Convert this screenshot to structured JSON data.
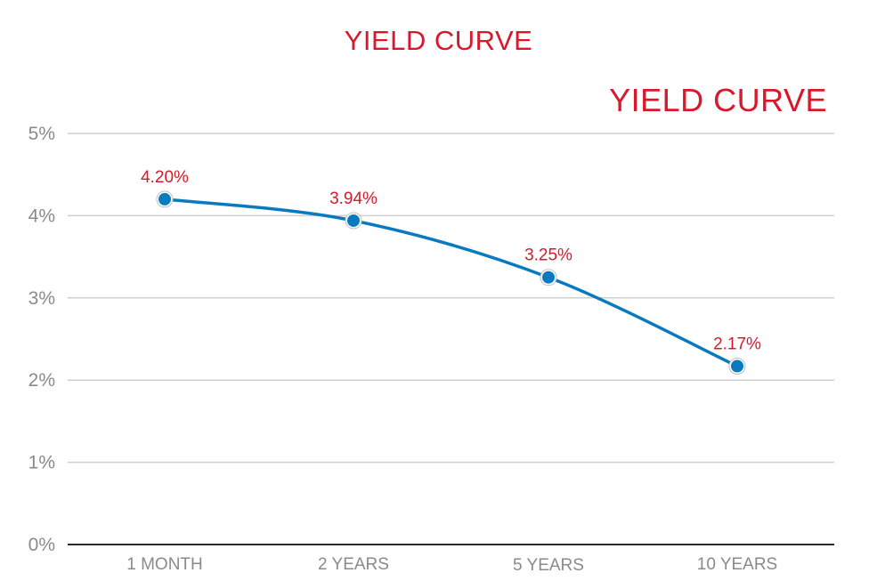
{
  "chart_data": {
    "type": "line",
    "title": "YIELD CURVE",
    "title_secondary": "YIELD CURVE",
    "categories": [
      "1 MONTH",
      "2 YEARS",
      "5 YEARS",
      "10 YEARS"
    ],
    "values": [
      4.2,
      3.94,
      3.25,
      2.17
    ],
    "data_labels": [
      "4.20%",
      "3.94%",
      "3.25%",
      "2.17%"
    ],
    "ylim": [
      0,
      5
    ],
    "yticks": [
      0,
      1,
      2,
      3,
      4,
      5
    ],
    "ytick_labels": [
      "0%",
      "1%",
      "2%",
      "3%",
      "4%",
      "5%"
    ],
    "grid": true,
    "line_color": "#0a7ac0",
    "label_color": "#d7192b",
    "title_color": "#d7192b"
  }
}
